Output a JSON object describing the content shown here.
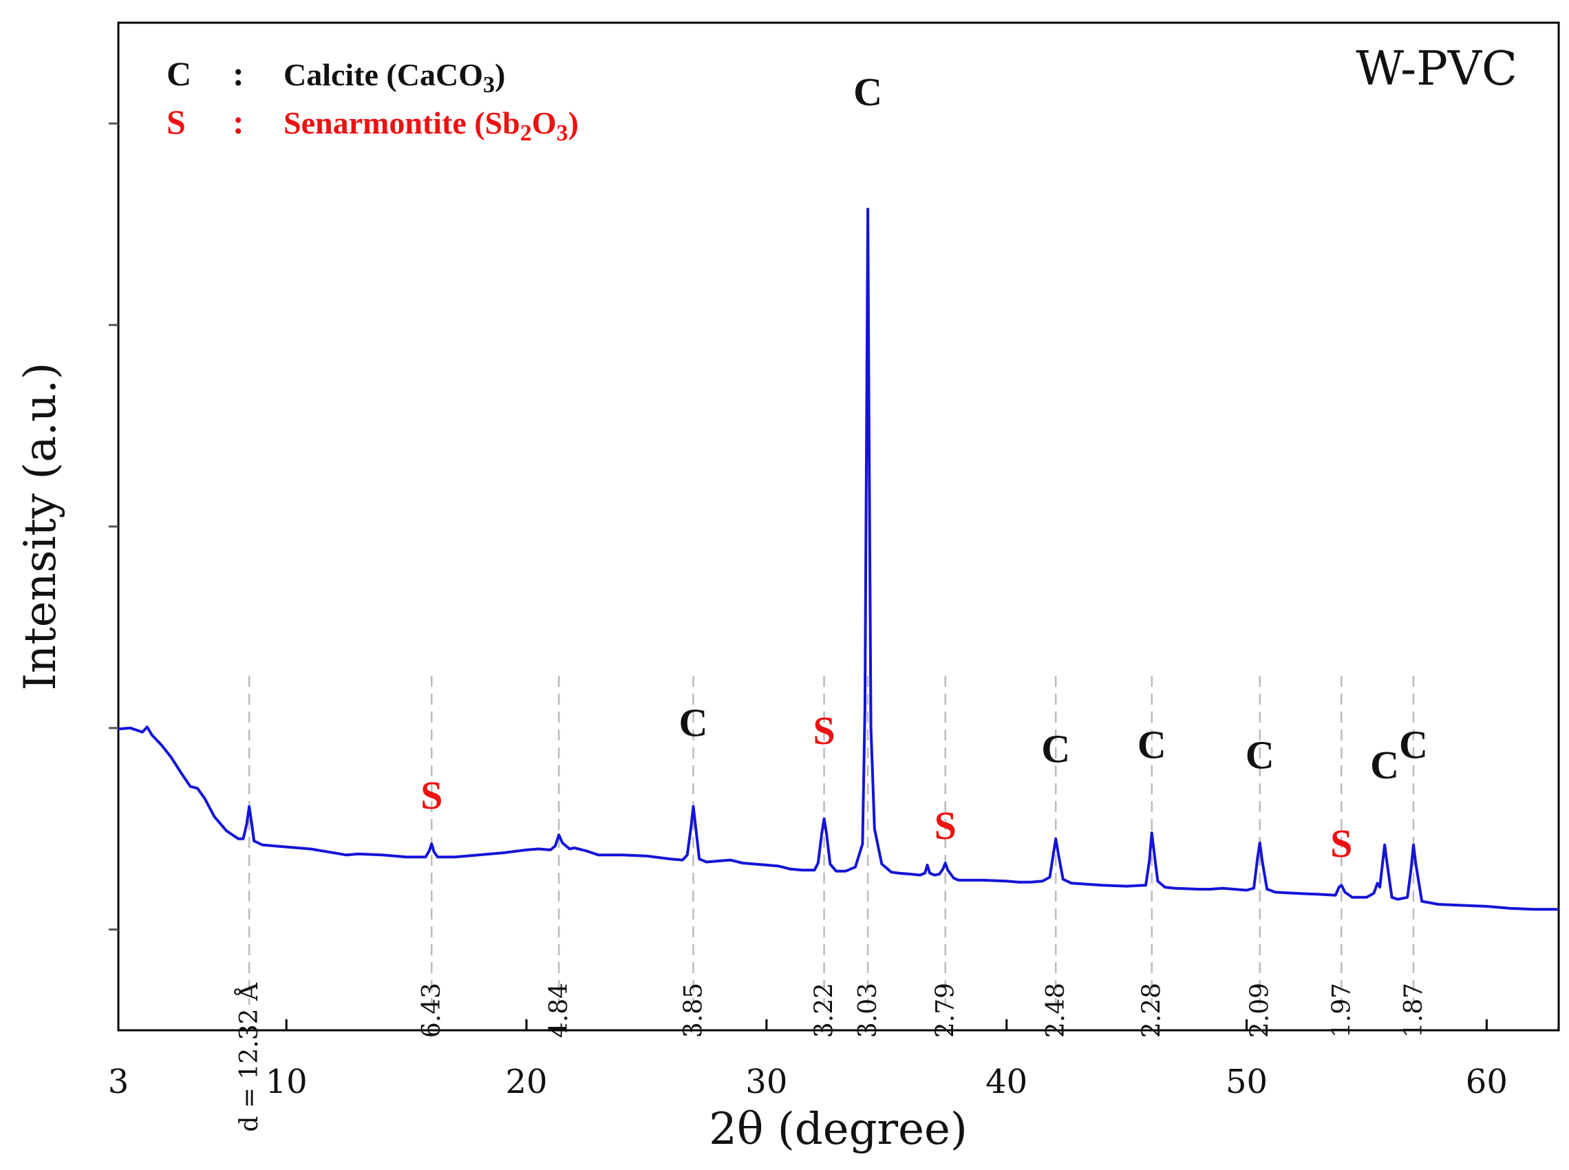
{
  "chart_data": {
    "type": "line",
    "title": "W-PVC",
    "xlabel": "2θ (degree)",
    "ylabel": "Intensity (a.u.)",
    "xlim": [
      3,
      63
    ],
    "ylim": [
      0,
      100
    ],
    "xticks": [
      3,
      10,
      20,
      30,
      40,
      50,
      60
    ],
    "yticks": [
      10,
      30,
      50,
      70,
      90
    ],
    "grid": false,
    "legend_position": "top-left",
    "colors": {
      "line": "#1414d8",
      "calcite": "#111111",
      "senarmontite": "#ee1111",
      "dashed": "#bbbbbb"
    },
    "legend": [
      {
        "key": "C",
        "sep": ":",
        "name": "Calcite (CaCO",
        "sub": "3",
        "close": ")",
        "color": "#111111"
      },
      {
        "key": "S",
        "sep": ":",
        "name": "Senarmontite (Sb",
        "sub": "2",
        "mid": "O",
        "sub2": "3",
        "close": ")",
        "color": "#ee1111"
      }
    ],
    "series": [
      {
        "name": "W-PVC",
        "points": [
          [
            3.0,
            29.9
          ],
          [
            3.5,
            30.0
          ],
          [
            4.0,
            29.6
          ],
          [
            4.2,
            30.1
          ],
          [
            4.4,
            29.3
          ],
          [
            4.8,
            28.3
          ],
          [
            5.2,
            27.1
          ],
          [
            5.6,
            25.6
          ],
          [
            6.0,
            24.2
          ],
          [
            6.3,
            24.0
          ],
          [
            6.6,
            23.0
          ],
          [
            7.0,
            21.2
          ],
          [
            7.5,
            19.8
          ],
          [
            8.0,
            19.0
          ],
          [
            8.2,
            19.0
          ],
          [
            8.35,
            20.5
          ],
          [
            8.45,
            22.2
          ],
          [
            8.55,
            20.6
          ],
          [
            8.65,
            18.8
          ],
          [
            9.0,
            18.4
          ],
          [
            9.5,
            18.3
          ],
          [
            10.0,
            18.2
          ],
          [
            11.0,
            18.0
          ],
          [
            12.0,
            17.6
          ],
          [
            12.5,
            17.4
          ],
          [
            13.0,
            17.5
          ],
          [
            14.0,
            17.4
          ],
          [
            15.0,
            17.2
          ],
          [
            15.8,
            17.2
          ],
          [
            15.95,
            17.8
          ],
          [
            16.05,
            18.5
          ],
          [
            16.15,
            17.7
          ],
          [
            16.3,
            17.2
          ],
          [
            17.0,
            17.2
          ],
          [
            18.0,
            17.4
          ],
          [
            19.0,
            17.6
          ],
          [
            20.0,
            17.9
          ],
          [
            20.5,
            18.0
          ],
          [
            21.0,
            17.9
          ],
          [
            21.2,
            18.3
          ],
          [
            21.35,
            19.4
          ],
          [
            21.5,
            18.6
          ],
          [
            21.8,
            18.0
          ],
          [
            22.0,
            18.1
          ],
          [
            22.5,
            17.8
          ],
          [
            23.0,
            17.4
          ],
          [
            24.0,
            17.4
          ],
          [
            25.0,
            17.3
          ],
          [
            26.0,
            17.0
          ],
          [
            26.5,
            16.9
          ],
          [
            26.7,
            17.4
          ],
          [
            26.85,
            20.1
          ],
          [
            26.95,
            22.2
          ],
          [
            27.05,
            20.2
          ],
          [
            27.2,
            17.0
          ],
          [
            27.5,
            16.7
          ],
          [
            28.0,
            16.8
          ],
          [
            28.5,
            16.9
          ],
          [
            29.0,
            16.6
          ],
          [
            30.0,
            16.4
          ],
          [
            30.5,
            16.3
          ],
          [
            31.0,
            16.0
          ],
          [
            31.5,
            15.9
          ],
          [
            32.0,
            15.9
          ],
          [
            32.15,
            16.6
          ],
          [
            32.3,
            19.5
          ],
          [
            32.4,
            21.0
          ],
          [
            32.5,
            19.5
          ],
          [
            32.65,
            16.5
          ],
          [
            32.9,
            15.8
          ],
          [
            33.3,
            15.8
          ],
          [
            33.7,
            16.2
          ],
          [
            34.0,
            18.5
          ],
          [
            34.1,
            32.0
          ],
          [
            34.17,
            60.0
          ],
          [
            34.22,
            81.5
          ],
          [
            34.27,
            60.0
          ],
          [
            34.35,
            30.0
          ],
          [
            34.5,
            20.0
          ],
          [
            34.8,
            16.5
          ],
          [
            35.2,
            15.7
          ],
          [
            35.5,
            15.6
          ],
          [
            36.0,
            15.5
          ],
          [
            36.4,
            15.4
          ],
          [
            36.6,
            15.6
          ],
          [
            36.7,
            16.4
          ],
          [
            36.8,
            15.6
          ],
          [
            37.0,
            15.4
          ],
          [
            37.2,
            15.5
          ],
          [
            37.35,
            16.0
          ],
          [
            37.45,
            16.6
          ],
          [
            37.55,
            15.9
          ],
          [
            37.8,
            15.1
          ],
          [
            38.0,
            14.9
          ],
          [
            39.0,
            14.9
          ],
          [
            40.0,
            14.8
          ],
          [
            40.5,
            14.7
          ],
          [
            41.0,
            14.7
          ],
          [
            41.5,
            14.8
          ],
          [
            41.8,
            15.2
          ],
          [
            41.95,
            17.5
          ],
          [
            42.05,
            19.0
          ],
          [
            42.15,
            17.6
          ],
          [
            42.35,
            15.0
          ],
          [
            42.7,
            14.6
          ],
          [
            44.0,
            14.4
          ],
          [
            45.0,
            14.3
          ],
          [
            45.8,
            14.4
          ],
          [
            45.95,
            16.8
          ],
          [
            46.05,
            19.6
          ],
          [
            46.15,
            17.6
          ],
          [
            46.3,
            14.8
          ],
          [
            46.6,
            14.2
          ],
          [
            47.0,
            14.1
          ],
          [
            48.0,
            14.0
          ],
          [
            48.5,
            14.0
          ],
          [
            49.0,
            14.1
          ],
          [
            50.0,
            13.9
          ],
          [
            50.3,
            14.1
          ],
          [
            50.45,
            17.0
          ],
          [
            50.55,
            18.6
          ],
          [
            50.65,
            16.8
          ],
          [
            50.85,
            14.0
          ],
          [
            51.2,
            13.7
          ],
          [
            52.0,
            13.6
          ],
          [
            53.0,
            13.5
          ],
          [
            53.7,
            13.4
          ],
          [
            53.85,
            14.2
          ],
          [
            53.95,
            14.4
          ],
          [
            54.1,
            13.7
          ],
          [
            54.4,
            13.2
          ],
          [
            55.0,
            13.2
          ],
          [
            55.3,
            13.6
          ],
          [
            55.45,
            14.6
          ],
          [
            55.55,
            14.2
          ],
          [
            55.65,
            16.3
          ],
          [
            55.75,
            18.4
          ],
          [
            55.85,
            16.6
          ],
          [
            56.05,
            13.2
          ],
          [
            56.3,
            13.0
          ],
          [
            56.7,
            13.2
          ],
          [
            56.85,
            16.0
          ],
          [
            56.95,
            18.4
          ],
          [
            57.05,
            16.5
          ],
          [
            57.3,
            12.8
          ],
          [
            58.0,
            12.5
          ],
          [
            59.0,
            12.4
          ],
          [
            60.0,
            12.3
          ],
          [
            61.0,
            12.1
          ],
          [
            62.0,
            12.0
          ],
          [
            63.0,
            12.0
          ]
        ]
      }
    ],
    "peaks": [
      {
        "x": 8.45,
        "y": 22.2,
        "d": "d = 12.32 Å",
        "phase": ""
      },
      {
        "x": 16.05,
        "y": 18.5,
        "d": "6.43",
        "phase": "S",
        "label_y": 22.0
      },
      {
        "x": 21.35,
        "y": 19.4,
        "d": "4.84",
        "phase": ""
      },
      {
        "x": 26.95,
        "y": 22.2,
        "d": "3.85",
        "phase": "C",
        "label_y": 29.2
      },
      {
        "x": 32.4,
        "y": 21.0,
        "d": "3.22",
        "phase": "S",
        "label_y": 28.4
      },
      {
        "x": 34.22,
        "y": 81.5,
        "d": "3.03",
        "phase": "C",
        "label_y": 91.8
      },
      {
        "x": 37.45,
        "y": 16.6,
        "d": "2.79",
        "phase": "S",
        "label_y": 19.0
      },
      {
        "x": 42.05,
        "y": 19.0,
        "d": "2.48",
        "phase": "C",
        "label_y": 26.6
      },
      {
        "x": 46.05,
        "y": 19.6,
        "d": "2.28",
        "phase": "C",
        "label_y": 27.0
      },
      {
        "x": 50.55,
        "y": 18.6,
        "d": "2.09",
        "phase": "C",
        "label_y": 26.0
      },
      {
        "x": 53.95,
        "y": 14.4,
        "d": "1.97",
        "phase": "S",
        "label_y": 17.2
      },
      {
        "x": 55.75,
        "y": 18.4,
        "d": "",
        "phase": "C",
        "label_y": 25.0
      },
      {
        "x": 56.95,
        "y": 18.4,
        "d": "1.87",
        "phase": "C",
        "label_y": 27.0
      }
    ]
  }
}
